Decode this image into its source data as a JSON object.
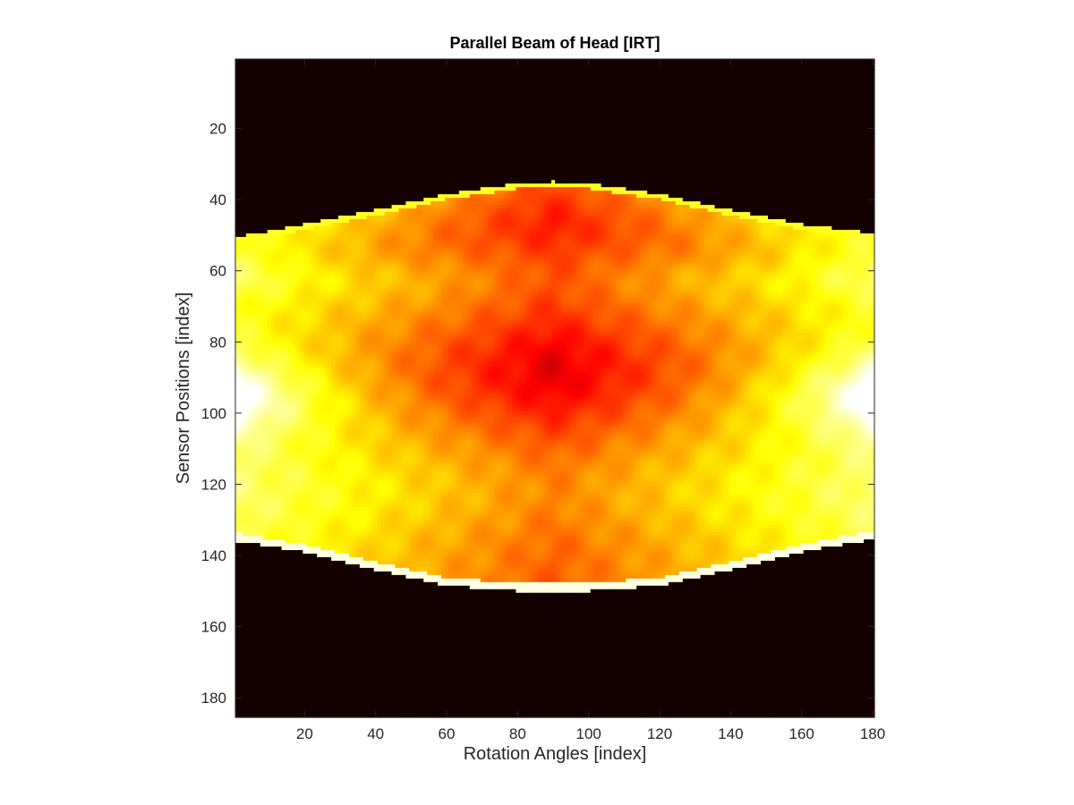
{
  "chart_data": {
    "type": "heatmap",
    "title": "Parallel Beam of Head [IRT]",
    "xlabel": "Rotation Angles [index]",
    "ylabel": "Sensor Positions [index]",
    "colormap": "hot",
    "colors": {
      "background": "#050000",
      "low": "#ff2000",
      "mid": "#ff9a00",
      "high": "#ffff10",
      "peak": "#fffff0",
      "axis": "#262626"
    },
    "xlim": [
      0.5,
      180.5
    ],
    "ylim": [
      0.5,
      185.5
    ],
    "y_reversed": true,
    "x_ticks": [
      20,
      40,
      60,
      80,
      100,
      120,
      140,
      160,
      180
    ],
    "y_ticks": [
      20,
      40,
      60,
      80,
      100,
      120,
      140,
      160,
      180
    ],
    "columns": 180,
    "rows": 185,
    "object_edges": {
      "angles": [
        1,
        20,
        40,
        60,
        80,
        90,
        100,
        120,
        140,
        160,
        180
      ],
      "top_edge": [
        50.5,
        47,
        43,
        38.5,
        35.5,
        35,
        35.5,
        38.5,
        43,
        47,
        49.5
      ],
      "bottom_edge": [
        136,
        139,
        144,
        148.5,
        150,
        150,
        150,
        148.5,
        144,
        139,
        135.5
      ]
    },
    "grid": false
  }
}
